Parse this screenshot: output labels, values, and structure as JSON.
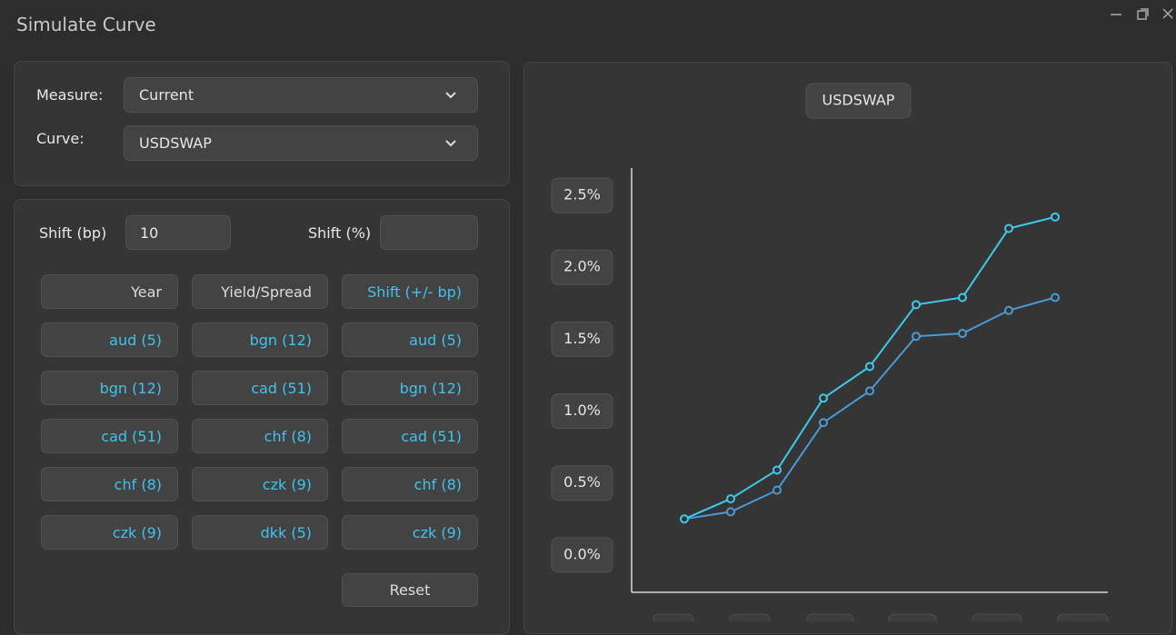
{
  "window": {
    "title": "Simulate Curve"
  },
  "form": {
    "measure_label": "Measure:",
    "measure_value": "Current",
    "curve_label": "Curve:",
    "curve_value": "USDSWAP"
  },
  "shift": {
    "bp_label": "Shift (bp)",
    "bp_value": "10",
    "pct_label": "Shift (%)"
  },
  "table": {
    "headers": [
      "Year",
      "Yield/Spread",
      "Shift (+/- bp)"
    ],
    "rows": [
      [
        "aud (5)",
        "bgn (12)",
        "aud (5)"
      ],
      [
        "bgn (12)",
        "cad (51)",
        "bgn (12)"
      ],
      [
        "cad (51)",
        "chf (8)",
        "cad (51)"
      ],
      [
        "chf (8)",
        "czk (9)",
        "chf (8)"
      ],
      [
        "czk (9)",
        "dkk (5)",
        "czk (9)"
      ]
    ]
  },
  "reset": "Reset",
  "chart_data": {
    "type": "line",
    "title": "USDSWAP",
    "categories": [
      null,
      null,
      null,
      null,
      null,
      null,
      null,
      null,
      null
    ],
    "series": [
      {
        "color": "#3fc8ea",
        "values": [
          0.25,
          0.39,
          0.59,
          1.09,
          1.31,
          1.74,
          1.79,
          2.27,
          2.35
        ]
      },
      {
        "color": "#4a9ad6",
        "values": [
          0.25,
          0.3,
          0.45,
          0.92,
          1.14,
          1.52,
          1.54,
          1.7,
          1.79
        ]
      }
    ],
    "ylim": [
      -0.26,
      2.69
    ],
    "yticks": [
      {
        "value": 0,
        "label": "0.0%"
      },
      {
        "value": 0.5,
        "label": "0.5%"
      },
      {
        "value": 1,
        "label": "1.0%"
      },
      {
        "value": 1.5,
        "label": "1.5%"
      },
      {
        "value": 2,
        "label": "2.0%"
      },
      {
        "value": 2.5,
        "label": "2.5%"
      }
    ]
  }
}
